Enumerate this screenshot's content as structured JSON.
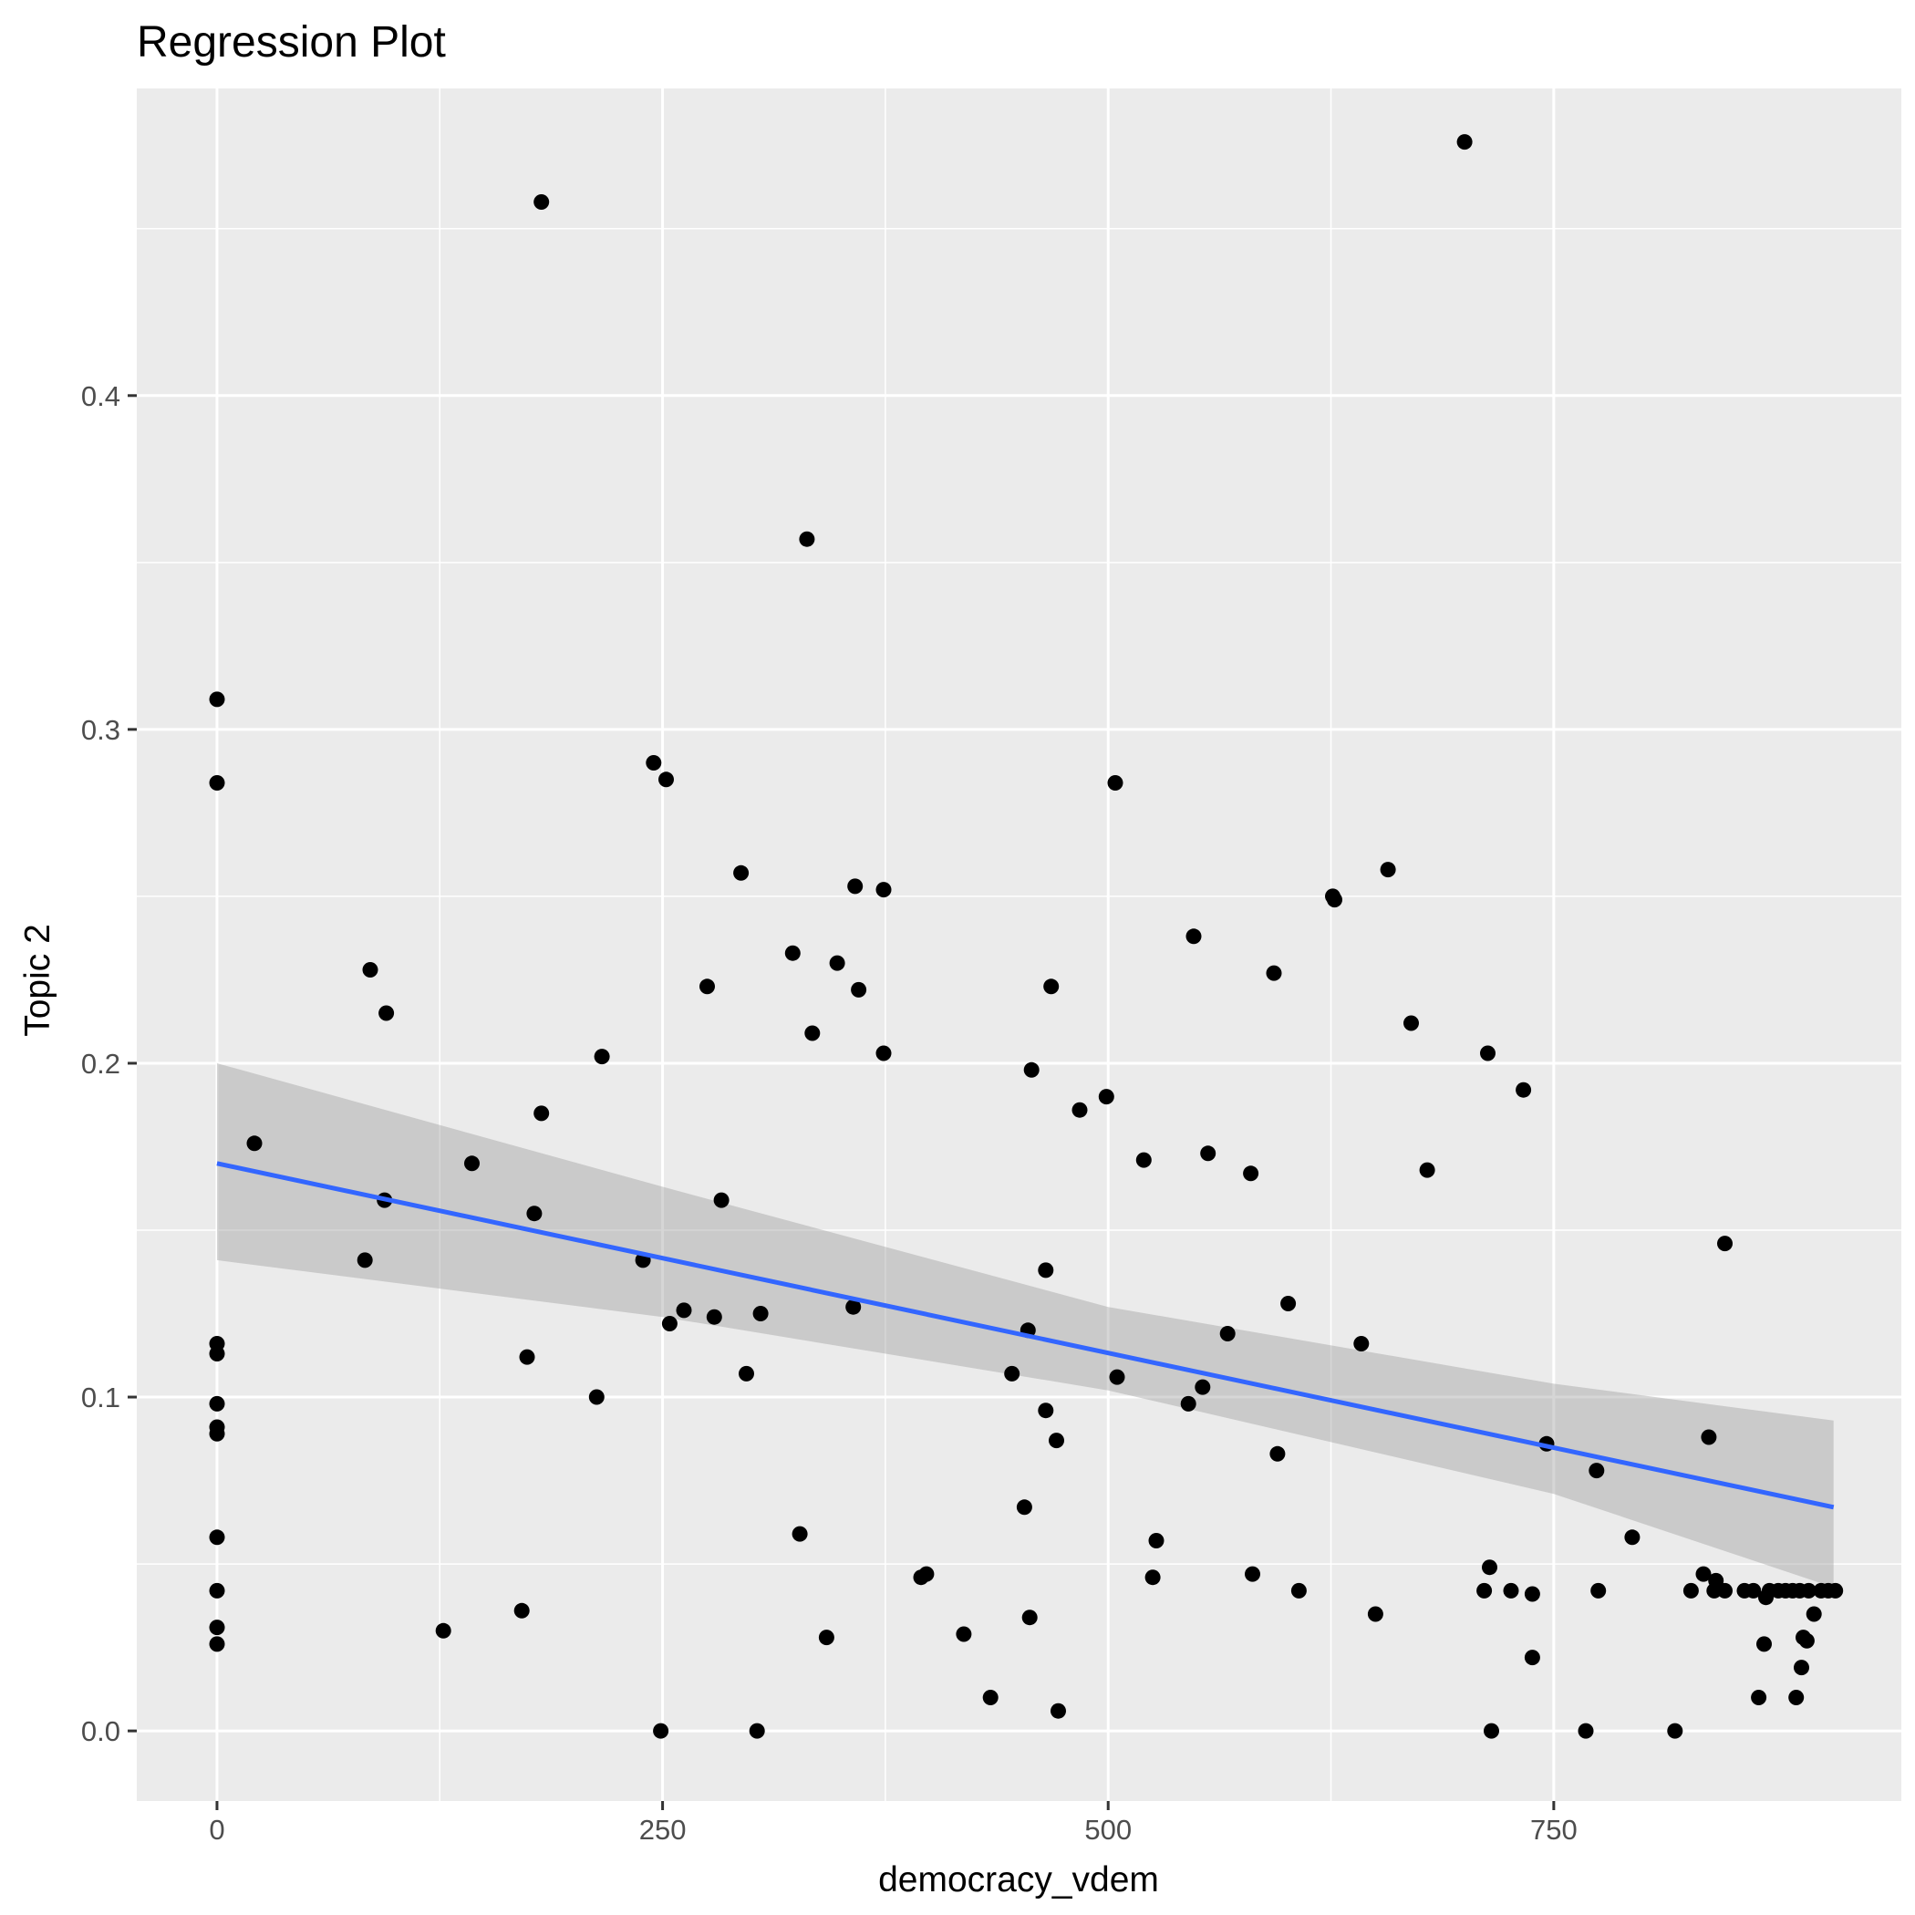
{
  "chart_data": {
    "type": "scatter",
    "title": "Regression Plot",
    "xlabel": "democracy_vdem",
    "ylabel": "Topic 2",
    "xlim": [
      -45,
      945
    ],
    "ylim": [
      -0.021,
      0.492
    ],
    "x_ticks": [
      0,
      250,
      500,
      750
    ],
    "x_tick_labels": [
      "0",
      "250",
      "500",
      "750"
    ],
    "y_ticks": [
      0.0,
      0.1,
      0.2,
      0.3,
      0.4
    ],
    "y_tick_labels": [
      "0.0",
      "0.1",
      "0.2",
      "0.3",
      "0.4"
    ],
    "grid": true,
    "colors": {
      "panel": "#ebebeb",
      "grid": "#ffffff",
      "points": "#000000",
      "fit_line": "#3366ff",
      "confidence_band": "#999999"
    },
    "points": [
      [
        0,
        0.309
      ],
      [
        0,
        0.284
      ],
      [
        0,
        0.116
      ],
      [
        0,
        0.113
      ],
      [
        0,
        0.098
      ],
      [
        0,
        0.091
      ],
      [
        0,
        0.089
      ],
      [
        0,
        0.058
      ],
      [
        0,
        0.042
      ],
      [
        0,
        0.031
      ],
      [
        0,
        0.026
      ],
      [
        21,
        0.176
      ],
      [
        83,
        0.141
      ],
      [
        86,
        0.228
      ],
      [
        94,
        0.159
      ],
      [
        95,
        0.215
      ],
      [
        127,
        0.03
      ],
      [
        143,
        0.17
      ],
      [
        171,
        0.036
      ],
      [
        174,
        0.112
      ],
      [
        178,
        0.155
      ],
      [
        182,
        0.458
      ],
      [
        182,
        0.185
      ],
      [
        213,
        0.1
      ],
      [
        216,
        0.202
      ],
      [
        239,
        0.141
      ],
      [
        245,
        0.29
      ],
      [
        249,
        0.0
      ],
      [
        252,
        0.285
      ],
      [
        254,
        0.122
      ],
      [
        262,
        0.126
      ],
      [
        275,
        0.223
      ],
      [
        279,
        0.124
      ],
      [
        283,
        0.159
      ],
      [
        294,
        0.257
      ],
      [
        297,
        0.107
      ],
      [
        303,
        0.0
      ],
      [
        305,
        0.125
      ],
      [
        323,
        0.233
      ],
      [
        327,
        0.059
      ],
      [
        331,
        0.357
      ],
      [
        334,
        0.209
      ],
      [
        342,
        0.028
      ],
      [
        348,
        0.23
      ],
      [
        357,
        0.127
      ],
      [
        358,
        0.253
      ],
      [
        360,
        0.222
      ],
      [
        374,
        0.252
      ],
      [
        374,
        0.203
      ],
      [
        395,
        0.046
      ],
      [
        398,
        0.047
      ],
      [
        419,
        0.029
      ],
      [
        434,
        0.01
      ],
      [
        446,
        0.107
      ],
      [
        453,
        0.067
      ],
      [
        455,
        0.12
      ],
      [
        456,
        0.034
      ],
      [
        457,
        0.198
      ],
      [
        465,
        0.138
      ],
      [
        465,
        0.096
      ],
      [
        468,
        0.223
      ],
      [
        471,
        0.087
      ],
      [
        472,
        0.006
      ],
      [
        484,
        0.186
      ],
      [
        499,
        0.19
      ],
      [
        504,
        0.284
      ],
      [
        505,
        0.106
      ],
      [
        520,
        0.171
      ],
      [
        525,
        0.046
      ],
      [
        527,
        0.057
      ],
      [
        545,
        0.098
      ],
      [
        548,
        0.238
      ],
      [
        553,
        0.103
      ],
      [
        556,
        0.173
      ],
      [
        567,
        0.119
      ],
      [
        580,
        0.167
      ],
      [
        581,
        0.047
      ],
      [
        593,
        0.227
      ],
      [
        595,
        0.083
      ],
      [
        601,
        0.128
      ],
      [
        607,
        0.042
      ],
      [
        626,
        0.25
      ],
      [
        627,
        0.249
      ],
      [
        642,
        0.116
      ],
      [
        650,
        0.035
      ],
      [
        657,
        0.258
      ],
      [
        670,
        0.212
      ],
      [
        679,
        0.168
      ],
      [
        700,
        0.476
      ],
      [
        711,
        0.042
      ],
      [
        713,
        0.203
      ],
      [
        714,
        0.049
      ],
      [
        715,
        0.0
      ],
      [
        726,
        0.042
      ],
      [
        733,
        0.192
      ],
      [
        738,
        0.041
      ],
      [
        738,
        0.022
      ],
      [
        746,
        0.086
      ],
      [
        768,
        0.0
      ],
      [
        774,
        0.078
      ],
      [
        775,
        0.042
      ],
      [
        794,
        0.058
      ],
      [
        818,
        0.0
      ],
      [
        827,
        0.042
      ],
      [
        834,
        0.047
      ],
      [
        837,
        0.088
      ],
      [
        840,
        0.042
      ],
      [
        841,
        0.045
      ],
      [
        846,
        0.042
      ],
      [
        846,
        0.146
      ],
      [
        857,
        0.042
      ],
      [
        862,
        0.042
      ],
      [
        865,
        0.01
      ],
      [
        868,
        0.026
      ],
      [
        869,
        0.04
      ],
      [
        871,
        0.042
      ],
      [
        876,
        0.042
      ],
      [
        880,
        0.042
      ],
      [
        884,
        0.042
      ],
      [
        886,
        0.01
      ],
      [
        888,
        0.042
      ],
      [
        889,
        0.019
      ],
      [
        890,
        0.028
      ],
      [
        892,
        0.027
      ],
      [
        893,
        0.042
      ],
      [
        896,
        0.035
      ],
      [
        900,
        0.042
      ],
      [
        904,
        0.042
      ],
      [
        908,
        0.042
      ]
    ],
    "regression_line": {
      "x": [
        0,
        907
      ],
      "y": [
        0.17,
        0.067
      ]
    },
    "confidence_band": {
      "x": [
        0,
        250,
        500,
        750,
        907
      ],
      "lower": [
        0.141,
        0.124,
        0.102,
        0.071,
        0.043
      ],
      "upper": [
        0.2,
        0.163,
        0.127,
        0.104,
        0.093
      ]
    }
  }
}
